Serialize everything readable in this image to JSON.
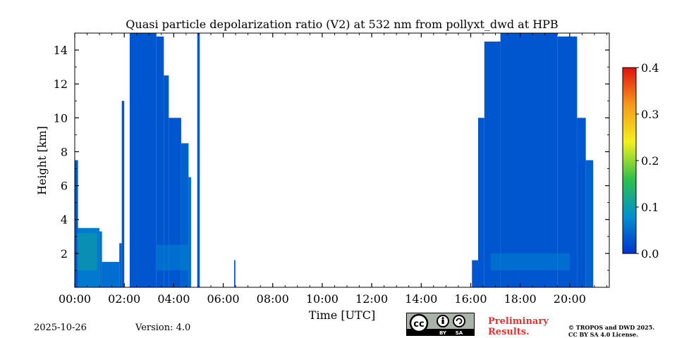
{
  "chart_data": {
    "type": "heatmap",
    "title": "Quasi particle depolarization ratio (V2) at 532 nm from pollyxt_dwd at HPB",
    "xlabel": "Time [UTC]",
    "ylabel": "Height [km]",
    "xlim_hours": [
      0,
      21.6
    ],
    "ylim_km": [
      0,
      15
    ],
    "x_ticks_hours": [
      0,
      2,
      4,
      6,
      8,
      10,
      12,
      14,
      16,
      18,
      20
    ],
    "x_tick_labels": [
      "00:00",
      "02:00",
      "04:00",
      "06:00",
      "08:00",
      "10:00",
      "12:00",
      "14:00",
      "16:00",
      "18:00",
      "20:00"
    ],
    "y_ticks_km": [
      2,
      4,
      6,
      8,
      10,
      12,
      14
    ],
    "y_tick_labels": [
      "2",
      "4",
      "6",
      "8",
      "10",
      "12",
      "14"
    ],
    "colorbar": {
      "range": [
        0.0,
        0.4
      ],
      "ticks": [
        0.0,
        0.1,
        0.2,
        0.3,
        0.4
      ],
      "tick_labels": [
        "0.0",
        "0.1",
        "0.2",
        "0.3",
        "0.4"
      ],
      "colors": [
        "#0033cc",
        "#0090d0",
        "#2ec04a",
        "#f4f01e",
        "#f59a19",
        "#e01010"
      ]
    },
    "base_value": 0.03,
    "data_columns": [
      {
        "start": 0.0,
        "end": 0.13,
        "top_km": 7.5,
        "value": 0.03
      },
      {
        "start": 0.13,
        "end": 1.0,
        "top_km": 3.5,
        "value": 0.06
      },
      {
        "start": 1.0,
        "end": 1.1,
        "top_km": 3.3,
        "value": 0.05
      },
      {
        "start": 1.1,
        "end": 1.8,
        "top_km": 1.5,
        "value": 0.05
      },
      {
        "start": 1.8,
        "end": 1.9,
        "top_km": 2.6,
        "value": 0.04
      },
      {
        "start": 1.9,
        "end": 2.0,
        "top_km": 11.0,
        "value": 0.03
      },
      {
        "start": 2.22,
        "end": 2.45,
        "top_km": 15.0,
        "value": 0.03
      },
      {
        "start": 2.45,
        "end": 3.3,
        "top_km": 15.0,
        "value": 0.03
      },
      {
        "start": 3.3,
        "end": 3.6,
        "top_km": 14.8,
        "value": 0.03
      },
      {
        "start": 3.6,
        "end": 3.8,
        "top_km": 12.5,
        "value": 0.03
      },
      {
        "start": 3.8,
        "end": 4.3,
        "top_km": 10.0,
        "value": 0.03
      },
      {
        "start": 4.3,
        "end": 4.6,
        "top_km": 8.5,
        "value": 0.04
      },
      {
        "start": 4.6,
        "end": 4.7,
        "top_km": 6.5,
        "value": 0.05
      },
      {
        "start": 4.95,
        "end": 5.05,
        "top_km": 15.0,
        "value": 0.03
      },
      {
        "start": 6.44,
        "end": 6.49,
        "top_km": 1.6,
        "value": 0.03
      },
      {
        "start": 16.05,
        "end": 16.3,
        "top_km": 1.6,
        "value": 0.03
      },
      {
        "start": 16.3,
        "end": 16.55,
        "top_km": 10.0,
        "value": 0.03
      },
      {
        "start": 16.55,
        "end": 17.2,
        "top_km": 14.5,
        "value": 0.03
      },
      {
        "start": 17.2,
        "end": 19.5,
        "top_km": 15.0,
        "value": 0.03
      },
      {
        "start": 19.5,
        "end": 20.3,
        "top_km": 14.8,
        "value": 0.03
      },
      {
        "start": 20.3,
        "end": 20.65,
        "top_km": 10.0,
        "value": 0.03
      },
      {
        "start": 20.65,
        "end": 20.95,
        "top_km": 7.5,
        "value": 0.04
      }
    ],
    "aerosol_layers": [
      {
        "start": 0.1,
        "end": 0.9,
        "bottom_km": 1.0,
        "top_km": 3.2,
        "value": 0.11
      },
      {
        "start": 3.3,
        "end": 4.6,
        "bottom_km": 1.0,
        "top_km": 2.5,
        "value": 0.07
      },
      {
        "start": 16.8,
        "end": 20.0,
        "bottom_km": 1.0,
        "top_km": 2.0,
        "value": 0.07
      }
    ]
  },
  "footer": {
    "date": "2025-10-26",
    "version": "Version: 4.0",
    "license_badge_text": [
      "BY",
      "SA"
    ],
    "preliminary": [
      "Preliminary",
      "Results."
    ],
    "copyright": [
      "© TROPOS and DWD 2025.",
      "CC BY SA 4.0 License."
    ]
  }
}
